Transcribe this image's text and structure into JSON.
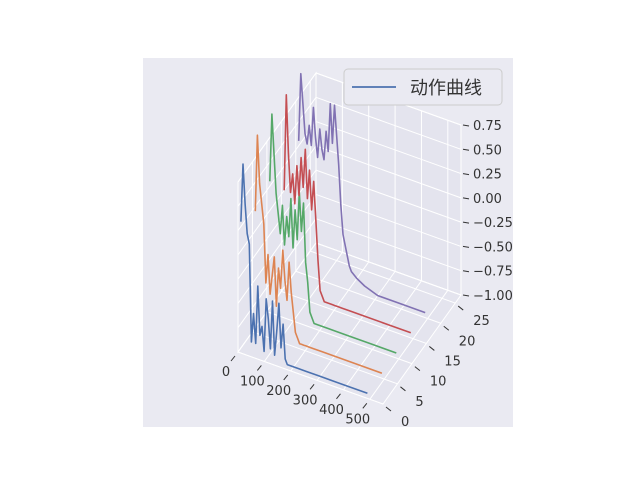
{
  "chart_data": {
    "type": "line",
    "projection": "3d",
    "title": "",
    "xlabel": "",
    "ylabel": "",
    "zlabel": "",
    "xlim": [
      0,
      550
    ],
    "ylim": [
      0,
      27
    ],
    "zlim": [
      -1.0,
      0.75
    ],
    "x_ticks": [
      0,
      100,
      200,
      300,
      400,
      500
    ],
    "y_ticks": [
      0,
      5,
      10,
      15,
      20,
      25
    ],
    "z_ticks": [
      0.75,
      0.5,
      0.25,
      0.0,
      -0.25,
      -0.5,
      -0.75,
      -1.0
    ],
    "x_tick_labels": [
      "0",
      "100",
      "200",
      "300",
      "400",
      "500"
    ],
    "y_tick_labels": [
      "0",
      "5",
      "10",
      "15",
      "20",
      "25"
    ],
    "z_tick_labels": [
      "0.75",
      "0.50",
      "0.25",
      "0.00",
      "−0.25",
      "−0.50",
      "−0.75",
      "−1.00"
    ],
    "grid": true,
    "legend": {
      "position": "top-right",
      "entries": [
        "动作曲线"
      ]
    },
    "series_colors": [
      "#4c72b0",
      "#dd8452",
      "#55a868",
      "#c44e52",
      "#8172b3"
    ],
    "series": [
      {
        "y": 1,
        "color": "#4c72b0",
        "x": [
          0,
          8,
          16,
          24,
          32,
          40,
          48,
          56,
          64,
          72,
          80,
          88,
          96,
          104,
          112,
          120,
          128,
          136,
          144,
          152,
          160,
          168,
          176,
          184,
          192,
          200,
          220,
          250,
          300,
          400,
          480
        ],
        "z": [
          0.3,
          0.9,
          0.5,
          0.2,
          0.1,
          -0.9,
          -0.6,
          -0.9,
          -0.3,
          -0.8,
          -0.7,
          -0.95,
          -0.4,
          -0.6,
          -0.9,
          -0.4,
          -0.95,
          -0.7,
          -0.4,
          -0.85,
          -0.6,
          -0.95,
          -1.0,
          -1.0,
          -1.0,
          -1.0,
          -1.0,
          -1.0,
          -1.0,
          -1.0,
          -1.0
        ]
      },
      {
        "y": 6,
        "color": "#dd8452",
        "x": [
          0,
          8,
          16,
          24,
          32,
          40,
          48,
          56,
          64,
          72,
          80,
          88,
          96,
          104,
          112,
          120,
          128,
          136,
          144,
          152,
          160,
          168,
          176,
          184,
          192,
          200,
          220,
          250,
          300,
          400,
          480
        ],
        "z": [
          0.2,
          0.99,
          0.5,
          0.3,
          0.1,
          -0.5,
          -0.2,
          -0.6,
          -0.4,
          -0.2,
          -0.7,
          -0.3,
          -0.5,
          -0.1,
          -0.4,
          -0.6,
          -0.2,
          -0.5,
          -0.7,
          -0.9,
          -0.95,
          -1.0,
          -1.0,
          -1.0,
          -1.0,
          -1.0,
          -1.0,
          -1.0,
          -1.0,
          -1.0,
          -1.0
        ]
      },
      {
        "y": 11,
        "color": "#55a868",
        "x": [
          0,
          8,
          16,
          24,
          32,
          40,
          48,
          56,
          64,
          72,
          80,
          88,
          96,
          104,
          112,
          120,
          128,
          136,
          144,
          152,
          160,
          168,
          176,
          184,
          192,
          200,
          220,
          250,
          300,
          400,
          480
        ],
        "z": [
          0.3,
          1.0,
          0.6,
          0.2,
          0.0,
          -0.2,
          0.1,
          -0.3,
          0.0,
          -0.2,
          0.2,
          -0.3,
          0.1,
          -0.2,
          0.3,
          -0.1,
          0.2,
          -0.4,
          -0.6,
          -0.9,
          -0.95,
          -1.0,
          -1.0,
          -1.0,
          -1.0,
          -1.0,
          -1.0,
          -1.0,
          -1.0,
          -1.0,
          -1.0
        ]
      },
      {
        "y": 16,
        "color": "#c44e52",
        "x": [
          0,
          8,
          16,
          24,
          32,
          40,
          48,
          56,
          64,
          72,
          80,
          88,
          96,
          104,
          112,
          120,
          128,
          136,
          144,
          152,
          160,
          168,
          176,
          184,
          192,
          200,
          220,
          250,
          300,
          400,
          480
        ],
        "z": [
          0.0,
          0.99,
          0.4,
          0.0,
          0.2,
          -0.1,
          0.3,
          0.0,
          0.4,
          0.1,
          0.5,
          0.0,
          0.3,
          -0.1,
          0.2,
          -0.2,
          -0.6,
          -0.9,
          -0.95,
          -1.0,
          -1.0,
          -1.0,
          -1.0,
          -1.0,
          -1.0,
          -1.0,
          -1.0,
          -1.0,
          -1.0,
          -1.0,
          -1.0
        ]
      },
      {
        "y": 21,
        "color": "#8172b3",
        "x": [
          0,
          8,
          16,
          24,
          32,
          40,
          48,
          56,
          64,
          72,
          80,
          88,
          96,
          104,
          112,
          120,
          128,
          136,
          144,
          152,
          160,
          168,
          176,
          184,
          192,
          200,
          220,
          250,
          300,
          400,
          480
        ],
        "z": [
          0.3,
          1.0,
          0.7,
          0.4,
          0.3,
          0.5,
          0.3,
          0.7,
          0.4,
          0.2,
          0.5,
          0.3,
          0.2,
          0.5,
          0.3,
          0.8,
          0.4,
          0.8,
          0.5,
          0.2,
          -0.2,
          -0.5,
          -0.6,
          -0.7,
          -0.8,
          -0.85,
          -0.9,
          -0.95,
          -1.0,
          -1.0,
          -1.0
        ]
      }
    ]
  }
}
